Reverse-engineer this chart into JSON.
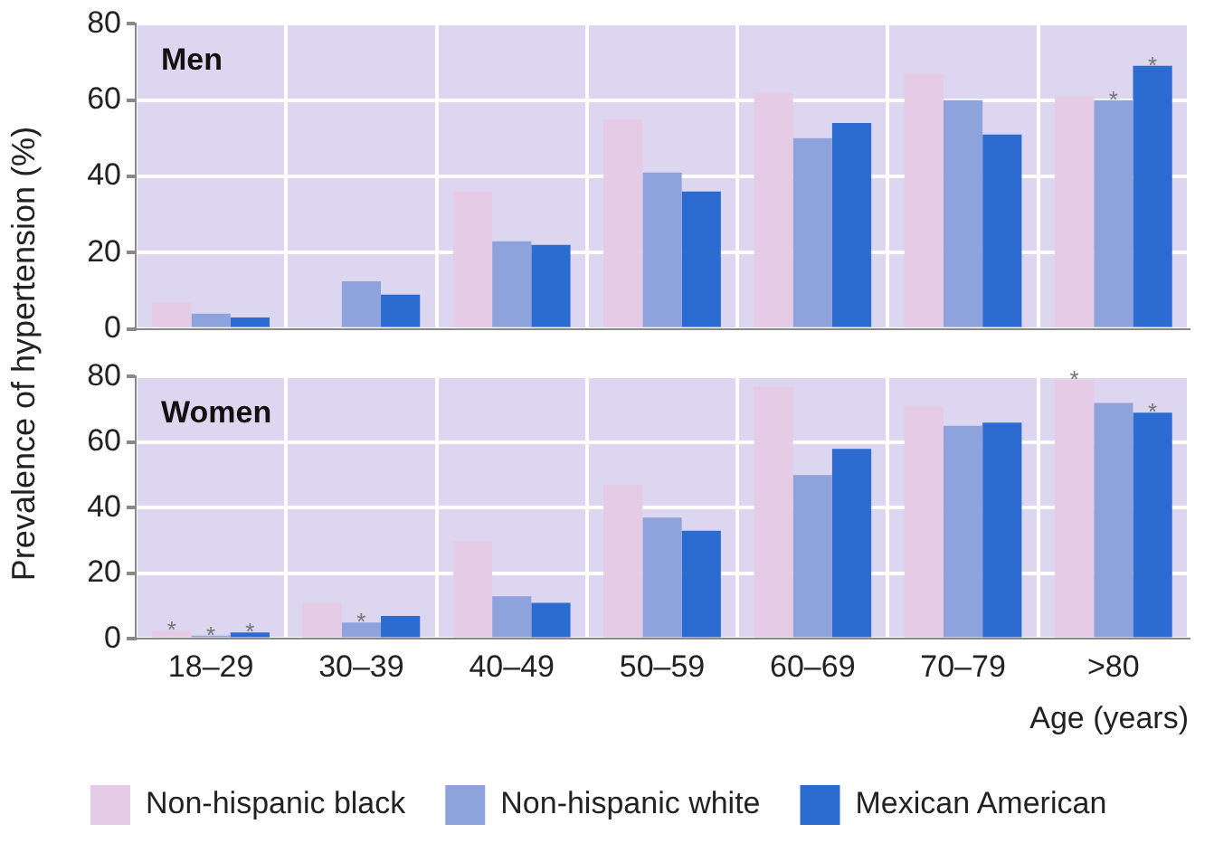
{
  "chart_data": [
    {
      "type": "bar",
      "title": "Men",
      "ylabel": "Prevalence of hypertension (%)",
      "categories": [
        null,
        null,
        null,
        null,
        null,
        null,
        null
      ],
      "series": [
        {
          "color": "#e6cbe6",
          "values": [
            7,
            null,
            36,
            55,
            62,
            67,
            61
          ]
        },
        {
          "color": "#8ea3dc",
          "values": [
            4,
            12.5,
            23,
            41,
            50,
            60,
            60
          ],
          "value_labels": [
            null,
            null,
            null,
            null,
            null,
            null,
            "*"
          ]
        },
        {
          "color": "#2c6cd0",
          "values": [
            3,
            9,
            22,
            36,
            54,
            51,
            69
          ],
          "value_labels": [
            null,
            null,
            null,
            null,
            null,
            null,
            "*"
          ]
        }
      ],
      "ylim": [
        0,
        80
      ],
      "yticks": [
        0,
        20,
        40,
        60,
        80
      ],
      "grid": true,
      "legend": false,
      "tick_labels": "y"
    },
    {
      "type": "bar",
      "title": "Women",
      "xlabel": "Age (years)",
      "categories": [
        "18–29",
        "30–39",
        "40–49",
        "50–59",
        "60–69",
        "70–79",
        ">80"
      ],
      "series": [
        {
          "name": "Non-hispanic black",
          "color": "#e6cbe6",
          "values": [
            2.5,
            11,
            30,
            47,
            77,
            71,
            79
          ],
          "value_labels": [
            "*",
            null,
            null,
            null,
            null,
            null,
            "*"
          ]
        },
        {
          "name": "Non-hispanic white",
          "color": "#8ea3dc",
          "values": [
            1,
            5,
            13,
            37,
            50,
            65,
            72
          ],
          "value_labels": [
            "*",
            "*",
            null,
            null,
            null,
            null,
            null
          ]
        },
        {
          "name": "Mexican American",
          "color": "#2c6cd0",
          "values": [
            2,
            7,
            11,
            33,
            58,
            66,
            69
          ],
          "value_labels": [
            "*",
            null,
            null,
            null,
            null,
            null,
            "*"
          ]
        }
      ],
      "ylim": [
        0,
        80
      ],
      "yticks": [
        0,
        20,
        40,
        60,
        80
      ],
      "grid": true,
      "legend": "bottom"
    }
  ]
}
